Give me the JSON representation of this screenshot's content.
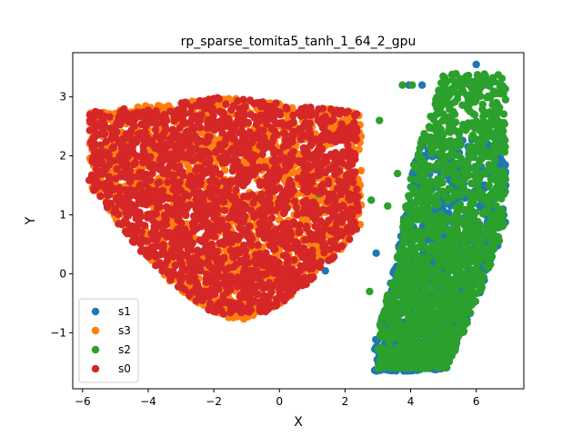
{
  "chart_data": {
    "type": "scatter",
    "title": "rp_sparse_tomita5_tanh_1_64_2_gpu",
    "xlabel": "X",
    "ylabel": "Y",
    "xlim": [
      -6.3,
      7.45
    ],
    "ylim": [
      -1.95,
      3.75
    ],
    "xticks": [
      -6,
      -4,
      -2,
      0,
      2,
      4,
      6
    ],
    "xtick_labels": [
      "−6",
      "−4",
      "−2",
      "0",
      "2",
      "4",
      "6"
    ],
    "yticks": [
      -1,
      0,
      1,
      2,
      3
    ],
    "ytick_labels": [
      "−1",
      "0",
      "1",
      "2",
      "3"
    ],
    "grid": false,
    "legend": "lower-left",
    "series": [
      {
        "name": "s1",
        "color": "#1f77b4",
        "clusters": [
          {
            "shape": "band",
            "x": [
              2.9,
              6.9
            ],
            "y": [
              -1.65,
              2.3
            ],
            "n": 950
          },
          {
            "shape": "points",
            "x": [
              3.95,
              4.35,
              6.0,
              2.95,
              6.3,
              6.9,
              1.4
            ],
            "y": [
              3.2,
              3.2,
              3.55,
              0.35,
              2.55,
              1.5,
              0.05
            ]
          }
        ]
      },
      {
        "name": "s3",
        "color": "#ff7f0e",
        "clusters": [
          {
            "shape": "region",
            "x": [
              -5.8,
              2.5
            ],
            "y": [
              -0.8,
              3.3
            ],
            "n": 1700
          }
        ]
      },
      {
        "name": "s2",
        "color": "#2ca02c",
        "clusters": [
          {
            "shape": "band",
            "x": [
              3.0,
              6.9
            ],
            "y": [
              -1.6,
              3.4
            ],
            "n": 1600
          },
          {
            "shape": "points",
            "x": [
              2.75,
              2.8,
              3.05,
              3.3,
              3.6,
              3.75,
              4.05,
              4.35,
              5.3,
              5.45,
              5.7,
              6.25,
              6.6,
              6.75,
              1.2
            ],
            "y": [
              -0.3,
              1.25,
              2.6,
              1.15,
              1.7,
              3.2,
              3.2,
              1.2,
              2.75,
              3.05,
              3.35,
              3.2,
              2.4,
              2.15,
              1.35
            ]
          }
        ]
      },
      {
        "name": "s0",
        "color": "#d62728",
        "clusters": [
          {
            "shape": "region",
            "x": [
              -5.8,
              2.4
            ],
            "y": [
              -0.7,
              3.1
            ],
            "n": 2000
          }
        ]
      }
    ]
  }
}
